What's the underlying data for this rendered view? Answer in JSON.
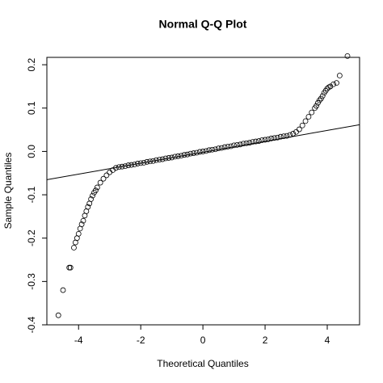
{
  "chart_data": {
    "type": "scatter",
    "title": "Normal Q-Q Plot",
    "xlabel": "Theoretical Quantiles",
    "ylabel": "Sample Quantiles",
    "xlim": [
      -5.02,
      5.04
    ],
    "ylim": [
      -0.4,
      0.217
    ],
    "xticks": [
      -4,
      -2,
      0,
      2,
      4
    ],
    "yticks": [
      -0.4,
      -0.3,
      -0.2,
      -0.1,
      {
        "value": 0,
        "label": "0.0"
      },
      0.1,
      0.2
    ],
    "color": "#000000",
    "reference_line": {
      "slope": 0.0126,
      "intercept": -0.002
    },
    "x": [
      -4.65,
      -4.5,
      -4.3,
      -4.26,
      -4.15,
      -4.1,
      -4.05,
      -4.0,
      -3.95,
      -3.9,
      -3.85,
      -3.8,
      -3.75,
      -3.7,
      -3.65,
      -3.6,
      -3.55,
      -3.5,
      -3.45,
      -3.4,
      -3.3,
      -3.2,
      -3.1,
      -3.0,
      -2.9,
      -2.8,
      -2.7,
      -2.6,
      -2.5,
      -2.4,
      -2.3,
      -2.2,
      -2.1,
      -2.0,
      -1.9,
      -1.8,
      -1.7,
      -1.6,
      -1.5,
      -1.4,
      -1.3,
      -1.2,
      -1.1,
      -1.0,
      -0.9,
      -0.8,
      -0.7,
      -0.6,
      -0.5,
      -0.4,
      -0.3,
      -0.2,
      -0.1,
      0,
      0.1,
      0.2,
      0.3,
      0.4,
      0.5,
      0.6,
      0.7,
      0.8,
      0.9,
      1.0,
      1.1,
      1.2,
      1.3,
      1.4,
      1.5,
      1.6,
      1.7,
      1.8,
      1.9,
      2.0,
      2.1,
      2.2,
      2.3,
      2.4,
      2.5,
      2.6,
      2.7,
      2.8,
      2.9,
      3.0,
      3.1,
      3.2,
      3.3,
      3.4,
      3.5,
      3.6,
      3.65,
      3.7,
      3.75,
      3.8,
      3.85,
      3.9,
      3.95,
      4.0,
      4.05,
      4.1,
      4.2,
      4.3,
      4.4,
      4.65
    ],
    "y": [
      -0.378,
      -0.32,
      -0.268,
      -0.268,
      -0.222,
      -0.21,
      -0.2,
      -0.19,
      -0.178,
      -0.168,
      -0.16,
      -0.148,
      -0.138,
      -0.128,
      -0.12,
      -0.11,
      -0.102,
      -0.095,
      -0.09,
      -0.083,
      -0.072,
      -0.063,
      -0.055,
      -0.048,
      -0.043,
      -0.038,
      -0.036,
      -0.035,
      -0.034,
      -0.032,
      -0.031,
      -0.03,
      -0.028,
      -0.027,
      -0.026,
      -0.024,
      -0.023,
      -0.022,
      -0.02,
      -0.019,
      -0.018,
      -0.016,
      -0.015,
      -0.014,
      -0.012,
      -0.011,
      -0.01,
      -0.008,
      -0.007,
      -0.005,
      -0.004,
      -0.003,
      -0.001,
      0,
      0.001,
      0.003,
      0.004,
      0.005,
      0.007,
      0.008,
      0.01,
      0.011,
      0.012,
      0.014,
      0.015,
      0.016,
      0.018,
      0.019,
      0.02,
      0.022,
      0.023,
      0.024,
      0.026,
      0.027,
      0.028,
      0.03,
      0.031,
      0.032,
      0.034,
      0.035,
      0.036,
      0.038,
      0.041,
      0.045,
      0.051,
      0.06,
      0.07,
      0.08,
      0.09,
      0.1,
      0.105,
      0.112,
      0.118,
      0.122,
      0.128,
      0.135,
      0.14,
      0.145,
      0.148,
      0.15,
      0.155,
      0.158,
      0.175,
      0.22
    ]
  }
}
